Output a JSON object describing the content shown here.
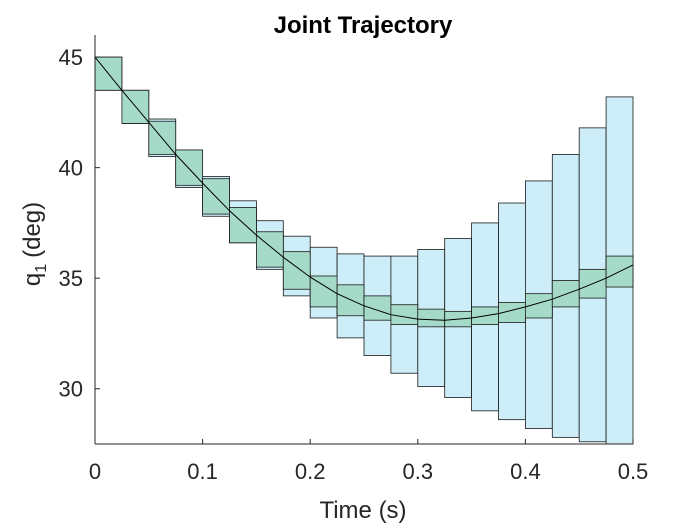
{
  "chart_data": {
    "type": "line",
    "title": "Joint Trajectory",
    "xlabel": "Time (s)",
    "ylabel_main": "q",
    "ylabel_sub": "1",
    "ylabel_unit": "(deg)",
    "xlim": [
      0,
      0.5
    ],
    "ylim": [
      27.5,
      46
    ],
    "xticks": [
      0,
      0.1,
      0.2,
      0.3,
      0.4,
      0.5
    ],
    "xtick_labels": [
      "0",
      "0.1",
      "0.2",
      "0.3",
      "0.4",
      "0.5"
    ],
    "yticks": [
      30,
      35,
      40,
      45
    ],
    "ytick_labels": [
      "30",
      "35",
      "40",
      "45"
    ],
    "grid": false,
    "colors": {
      "outer_box": "#cdeef8",
      "inner_box": "#a5dac9",
      "box_edge": "#1a1a1a",
      "line": "#000000"
    },
    "series": [
      {
        "type": "line",
        "x": [
          0,
          0.025,
          0.05,
          0.075,
          0.1,
          0.125,
          0.15,
          0.175,
          0.2,
          0.225,
          0.25,
          0.275,
          0.3,
          0.325,
          0.35,
          0.375,
          0.4,
          0.425,
          0.45,
          0.475,
          0.5
        ],
        "y": [
          45.0,
          43.5,
          42.05,
          40.6,
          39.3,
          38.05,
          36.95,
          35.95,
          35.05,
          34.3,
          33.75,
          33.35,
          33.15,
          33.1,
          33.2,
          33.4,
          33.7,
          34.05,
          34.5,
          35.0,
          35.6
        ]
      },
      {
        "type": "interval",
        "x_start": [
          0,
          0.025,
          0.05,
          0.075,
          0.1,
          0.125,
          0.15,
          0.175,
          0.2,
          0.225,
          0.25,
          0.275,
          0.3,
          0.325,
          0.35,
          0.375,
          0.4,
          0.425,
          0.45,
          0.475
        ],
        "x_end": [
          0.025,
          0.05,
          0.075,
          0.1,
          0.125,
          0.15,
          0.175,
          0.2,
          0.225,
          0.25,
          0.275,
          0.3,
          0.325,
          0.35,
          0.375,
          0.4,
          0.425,
          0.45,
          0.475,
          0.5
        ],
        "outer_low": [
          43.5,
          42.0,
          40.5,
          39.1,
          37.8,
          36.6,
          35.4,
          34.2,
          33.2,
          32.3,
          31.5,
          30.7,
          30.1,
          29.6,
          29.0,
          28.6,
          28.2,
          27.8,
          27.6,
          27.5
        ],
        "outer_high": [
          45.0,
          43.5,
          42.2,
          40.8,
          39.6,
          38.5,
          37.6,
          36.9,
          36.4,
          36.1,
          36.0,
          36.0,
          36.3,
          36.8,
          37.5,
          38.4,
          39.4,
          40.6,
          41.8,
          43.2
        ],
        "inner_low": [
          43.5,
          42.0,
          40.6,
          39.2,
          37.9,
          36.6,
          35.5,
          34.5,
          33.7,
          33.3,
          33.1,
          32.9,
          32.8,
          32.8,
          32.9,
          33.0,
          33.2,
          33.7,
          34.1,
          34.6
        ],
        "inner_high": [
          45.0,
          43.5,
          42.1,
          40.8,
          39.5,
          38.2,
          37.1,
          36.2,
          35.1,
          34.7,
          34.2,
          33.8,
          33.6,
          33.5,
          33.7,
          33.9,
          34.3,
          34.9,
          35.4,
          36.0
        ]
      }
    ]
  }
}
